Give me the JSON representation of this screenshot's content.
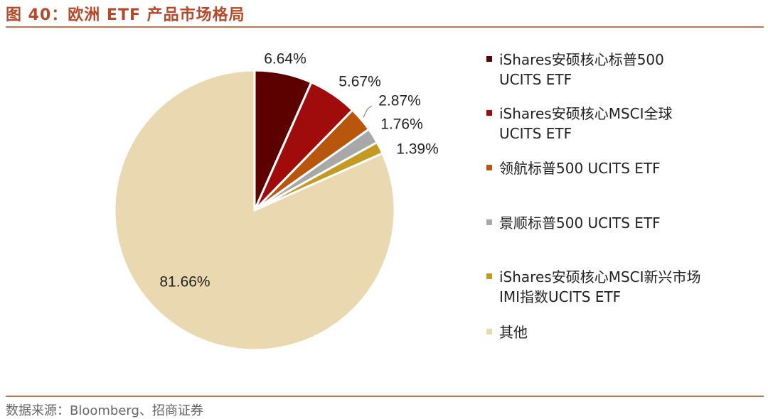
{
  "figure": {
    "title": "图 40：欧洲 ETF 产品市场格局",
    "source": "数据来源：Bloomberg、招商证券"
  },
  "chart_data": {
    "type": "pie",
    "title": "图 40：欧洲 ETF 产品市场格局",
    "start_angle": "12 o'clock, clockwise",
    "legend_position": "right",
    "slices": [
      {
        "label": "iShares安硕核心标普500\nUCITS ETF",
        "value": 6.64,
        "value_label": "6.64%",
        "color": "#5c0000"
      },
      {
        "label": "iShares安硕核心MSCI全球\nUCITS ETF",
        "value": 5.67,
        "value_label": "5.67%",
        "color": "#a00c0c"
      },
      {
        "label": "领航标普500 UCITS ETF",
        "value": 2.87,
        "value_label": "2.87%",
        "color": "#b8560e"
      },
      {
        "label": "景顺标普500 UCITS ETF",
        "value": 1.76,
        "value_label": "1.76%",
        "color": "#a8a8a8"
      },
      {
        "label": "iShares安硕核心MSCI新兴市场\nIMI指数UCITS ETF",
        "value": 1.39,
        "value_label": "1.39%",
        "color": "#c49a22"
      },
      {
        "label": "其他",
        "value": 81.66,
        "value_label": "81.66%",
        "color": "#ead9b0"
      }
    ]
  }
}
